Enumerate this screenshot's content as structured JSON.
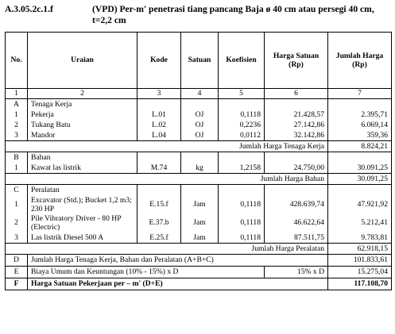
{
  "header": {
    "code": "A.3.05.2c.1.f",
    "title": "(VPD) Per-m' penetrasi tiang pancang Baja ø 40 cm atau persegi 40 cm, t=2,2 cm"
  },
  "columns": {
    "no": "No.",
    "uraian": "Uraian",
    "kode": "Kode",
    "satuan": "Satuan",
    "koefisien": "Koefisien",
    "harga_satuan": "Harga Satuan (Rp)",
    "jumlah_harga": "Jumlah Harga (Rp)"
  },
  "column_numbers": [
    "1",
    "2",
    "3",
    "4",
    "5",
    "6",
    "7"
  ],
  "section_a": {
    "letter": "A",
    "title": "Tenaga Kerja",
    "rows": [
      {
        "no": "1",
        "uraian": "Pekerja",
        "kode": "L.01",
        "satuan": "OJ",
        "koefisien": "0,1118",
        "harga": "21.428,57",
        "jumlah": "2.395,71"
      },
      {
        "no": "2",
        "uraian": "Tukang Batu",
        "kode": "L.02",
        "satuan": "OJ",
        "koefisien": "0,2236",
        "harga": "27.142,86",
        "jumlah": "6.069,14"
      },
      {
        "no": "3",
        "uraian": "Mandor",
        "kode": "L.04",
        "satuan": "OJ",
        "koefisien": "0,0112",
        "harga": "32.142,86",
        "jumlah": "359,36"
      }
    ],
    "subtotal_label": "Jumlah Harga Tenaga Kerja",
    "subtotal_value": "8.824,21"
  },
  "section_b": {
    "letter": "B",
    "title": "Bahan",
    "rows": [
      {
        "no": "1",
        "uraian": "Kawat las listrik",
        "kode": "M.74",
        "satuan": "kg",
        "koefisien": "1,2158",
        "harga": "24.750,00",
        "jumlah": "30.091,25"
      }
    ],
    "subtotal_label": "Jumlah Harga Bahan",
    "subtotal_value": "30.091,25"
  },
  "section_c": {
    "letter": "C",
    "title": "Peralatan",
    "rows": [
      {
        "no": "1",
        "uraian": "Excavator (Std.); Bucket 1,2 m3; 230 HP",
        "kode": "E.15.f",
        "satuan": "Jam",
        "koefisien": "0,1118",
        "harga": "428.639,74",
        "jumlah": "47.921,92"
      },
      {
        "no": "2",
        "uraian": "Pile Vibratory Driver - 80 HP (Electric)",
        "kode": "E.37.b",
        "satuan": "Jam",
        "koefisien": "0,1118",
        "harga": "46.622,64",
        "jumlah": "5.212,41"
      },
      {
        "no": "3",
        "uraian": "Las listrik Diesel 500 A",
        "kode": "E.25.f",
        "satuan": "Jam",
        "koefisien": "0,1118",
        "harga": "87.511,75",
        "jumlah": "9.783,81"
      }
    ],
    "subtotal_label": "Jumlah Harga Peralatan",
    "subtotal_value": "62.918,15"
  },
  "totals": {
    "d": {
      "letter": "D",
      "label": "Jumlah Harga Tenaga Kerja, Bahan dan Peralatan (A+B+C)",
      "value": "101.833,61"
    },
    "e": {
      "letter": "E",
      "label": "Biaya Umum dan Keuntungan (10% - 15%) x D",
      "pct": "15% x D",
      "value": "15.275,04"
    },
    "f": {
      "letter": "F",
      "label": "Harga Satuan Pekerjaan per – m' (D+E)",
      "value": "117.108,70"
    }
  }
}
